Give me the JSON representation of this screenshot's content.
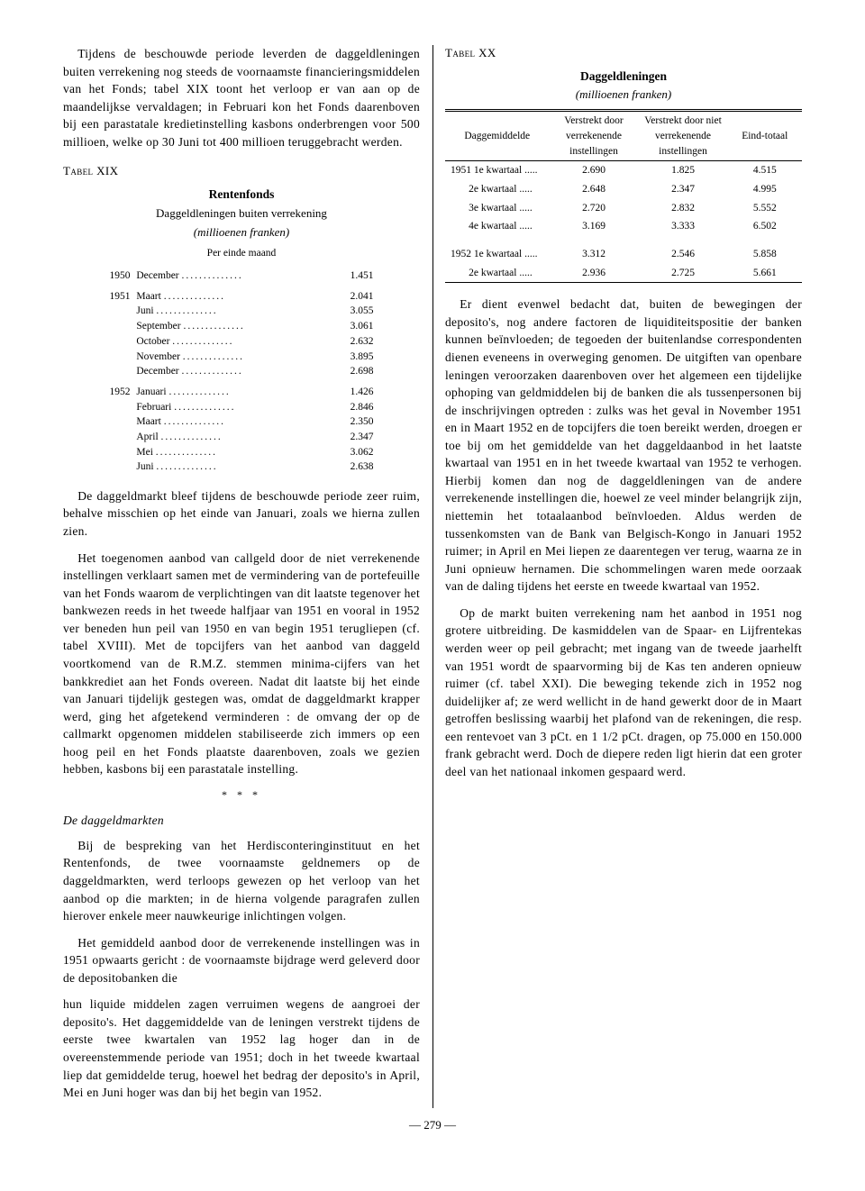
{
  "left": {
    "p1": "Tijdens de beschouwde periode leverden de daggeldleningen buiten verrekening nog steeds de voornaamste financieringsmiddelen van het Fonds; tabel XIX toont het verloop er van aan op de maandelijkse vervaldagen; in Februari kon het Fonds daarenboven bij een parastatale kredietinstelling kasbons onderbrengen voor 500 millioen, welke op 30 Juni tot 400 millioen teruggebracht werden.",
    "tbl19_label": "Tabel XIX",
    "tbl19_title": "Rentenfonds",
    "tbl19_sub": "Daggeldleningen buiten verrekening",
    "tbl19_unit": "(millioenen franken)",
    "tbl19_colhead": "Per einde maand",
    "tbl19_rows": [
      {
        "year": "1950",
        "items": [
          {
            "m": "December",
            "v": "1.451"
          }
        ]
      },
      {
        "year": "1951",
        "items": [
          {
            "m": "Maart",
            "v": "2.041"
          },
          {
            "m": "Juni",
            "v": "3.055"
          },
          {
            "m": "September",
            "v": "3.061"
          },
          {
            "m": "October",
            "v": "2.632"
          },
          {
            "m": "November",
            "v": "3.895"
          },
          {
            "m": "December",
            "v": "2.698"
          }
        ]
      },
      {
        "year": "1952",
        "items": [
          {
            "m": "Januari",
            "v": "1.426"
          },
          {
            "m": "Februari",
            "v": "2.846"
          },
          {
            "m": "Maart",
            "v": "2.350"
          },
          {
            "m": "April",
            "v": "2.347"
          },
          {
            "m": "Mei",
            "v": "3.062"
          },
          {
            "m": "Juni",
            "v": "2.638"
          }
        ]
      }
    ],
    "p2": "De daggeldmarkt bleef tijdens de beschouwde periode zeer ruim, behalve misschien op het einde van Januari, zoals we hierna zullen zien.",
    "p3": "Het toegenomen aanbod van callgeld door de niet verrekenende instellingen verklaart samen met de vermindering van de portefeuille van het Fonds waarom de verplichtingen van dit laatste tegenover het bankwezen reeds in het tweede halfjaar van 1951 en vooral in 1952 ver beneden hun peil van 1950 en van begin 1951 terugliepen (cf. tabel XVIII). Met de topcijfers van het aanbod van daggeld voortkomend van de R.M.Z. stemmen minima-cijfers van het bankkrediet aan het Fonds overeen. Nadat dit laatste bij het einde van Januari tijdelijk gestegen was, omdat de daggeldmarkt krapper werd, ging het afgetekend verminderen : de omvang der op de callmarkt opgenomen middelen stabiliseerde zich immers op een hoog peil en het Fonds plaatste daarenboven, zoals we gezien hebben, kasbons bij een parastatale instelling.",
    "sep": "* * *",
    "subhead": "De daggeldmarkten",
    "p4": "Bij de bespreking van het Herdisconteringinstituut en het Rentenfonds, de twee voornaamste geldnemers op de daggeldmarkten, werd terloops gewezen op het verloop van het aanbod op die markten; in de hierna volgende paragrafen zullen hierover enkele meer nauwkeurige inlichtingen volgen.",
    "p5": "Het gemiddeld aanbod door de verrekenende instellingen was in 1951 opwaarts gericht : de voornaamste bijdrage werd geleverd door de depositobanken die"
  },
  "right": {
    "p1": "hun liquide middelen zagen verruimen wegens de aangroei der deposito's. Het daggemiddelde van de leningen verstrekt tijdens de eerste twee kwartalen van 1952 lag hoger dan in de overeenstemmende periode van 1951; doch in het tweede kwartaal liep dat gemiddelde terug, hoewel het bedrag der deposito's in April, Mei en Juni hoger was dan bij het begin van 1952.",
    "tbl20_label": "Tabel XX",
    "tbl20_title": "Daggeldleningen",
    "tbl20_unit": "(millioenen franken)",
    "tbl20_headers": [
      "Daggemiddelde",
      "Verstrekt door verrekenende instellingen",
      "Verstrekt door niet verrekenende instellingen",
      "Eind-totaal"
    ],
    "tbl20_rows": [
      {
        "y": "1951",
        "q": "1e kwartaal .....",
        "a": "2.690",
        "b": "1.825",
        "c": "4.515"
      },
      {
        "y": "",
        "q": "2e kwartaal .....",
        "a": "2.648",
        "b": "2.347",
        "c": "4.995"
      },
      {
        "y": "",
        "q": "3e kwartaal .....",
        "a": "2.720",
        "b": "2.832",
        "c": "5.552"
      },
      {
        "y": "",
        "q": "4e kwartaal .....",
        "a": "3.169",
        "b": "3.333",
        "c": "6.502"
      },
      {
        "y": "1952",
        "q": "1e kwartaal .....",
        "a": "3.312",
        "b": "2.546",
        "c": "5.858"
      },
      {
        "y": "",
        "q": "2e kwartaal .....",
        "a": "2.936",
        "b": "2.725",
        "c": "5.661"
      }
    ],
    "p2": "Er dient evenwel bedacht dat, buiten de bewegingen der deposito's, nog andere factoren de liquiditeitspositie der banken kunnen beïnvloeden; de tegoeden der buitenlandse correspondenten dienen eveneens in overweging genomen. De uitgiften van openbare leningen veroorzaken daarenboven over het algemeen een tijdelijke ophoping van geldmiddelen bij de banken die als tussenpersonen bij de inschrijvingen optreden : zulks was het geval in November 1951 en in Maart 1952 en de topcijfers die toen bereikt werden, droegen er toe bij om het gemiddelde van het daggeldaanbod in het laatste kwartaal van 1951 en in het tweede kwartaal van 1952 te verhogen. Hierbij komen dan nog de daggeldleningen van de andere verrekenende instellingen die, hoewel ze veel minder belangrijk zijn, niettemin het totaalaanbod beïnvloeden. Aldus werden de tussenkomsten van de Bank van Belgisch-Kongo in Januari 1952 ruimer; in April en Mei liepen ze daarentegen ver terug, waarna ze in Juni opnieuw hernamen. Die schommelingen waren mede oorzaak van de daling tijdens het eerste en tweede kwartaal van 1952.",
    "p3": "Op de markt buiten verrekening nam het aanbod in 1951 nog grotere uitbreiding. De kasmiddelen van de Spaar- en Lijfrentekas werden weer op peil gebracht; met ingang van de tweede jaarhelft van 1951 wordt de spaarvorming bij de Kas ten anderen opnieuw ruimer (cf. tabel XXI). Die beweging tekende zich in 1952 nog duidelijker af; ze werd wellicht in de hand gewerkt door de in Maart getroffen beslissing waarbij het plafond van de rekeningen, die resp. een rentevoet van 3 pCt. en 1 1/2 pCt. dragen, op 75.000 en 150.000 frank gebracht werd. Doch de diepere reden ligt hierin dat een groter deel van het nationaal inkomen gespaard werd."
  },
  "pagenum": "— 279 —"
}
